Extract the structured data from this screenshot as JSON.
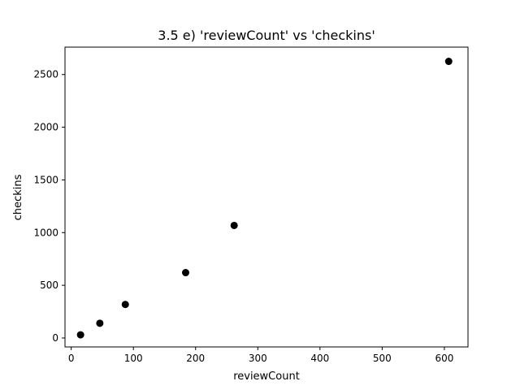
{
  "chart_data": {
    "type": "scatter",
    "title": "3.5 e) 'reviewCount' vs 'checkins'",
    "xlabel": "reviewCount",
    "ylabel": "checkins",
    "xlim": [
      -10,
      638
    ],
    "ylim": [
      -85,
      2760
    ],
    "xticks": [
      0,
      100,
      200,
      300,
      400,
      500,
      600
    ],
    "yticks": [
      0,
      500,
      1000,
      1500,
      2000,
      2500
    ],
    "grid": false,
    "series": [
      {
        "color": "#000000",
        "points": [
          {
            "x": 15,
            "y": 30
          },
          {
            "x": 46,
            "y": 140
          },
          {
            "x": 87,
            "y": 318
          },
          {
            "x": 184,
            "y": 620
          },
          {
            "x": 262,
            "y": 1068
          },
          {
            "x": 607,
            "y": 2625
          }
        ]
      }
    ]
  }
}
